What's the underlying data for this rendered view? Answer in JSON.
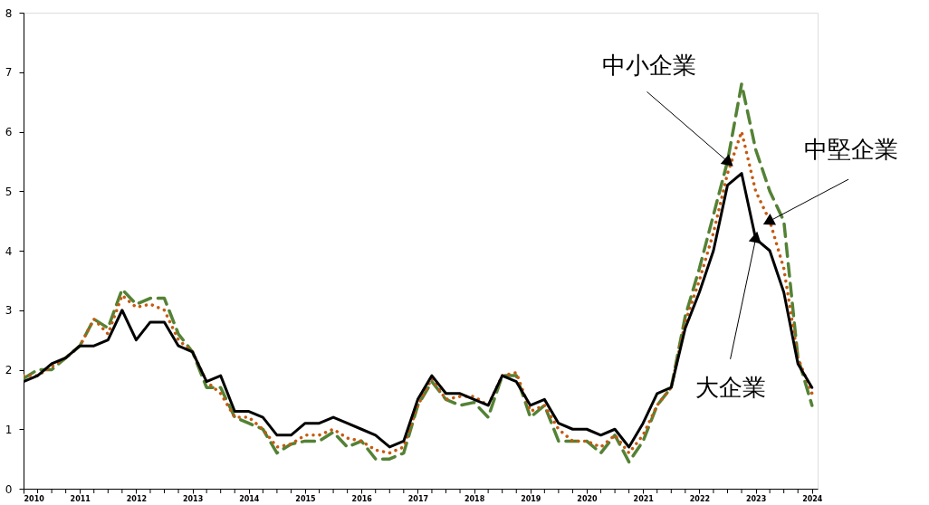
{
  "chart_data": {
    "type": "line",
    "x": [
      2010,
      2010.25,
      2010.5,
      2010.75,
      2011,
      2011.25,
      2011.5,
      2011.75,
      2012,
      2012.25,
      2012.5,
      2012.75,
      2013,
      2013.25,
      2013.5,
      2013.75,
      2014,
      2014.25,
      2014.5,
      2014.75,
      2015,
      2015.25,
      2015.5,
      2015.75,
      2016,
      2016.25,
      2016.5,
      2016.75,
      2017,
      2017.25,
      2017.5,
      2017.75,
      2018,
      2018.25,
      2018.5,
      2018.75,
      2019,
      2019.25,
      2019.5,
      2019.75,
      2020,
      2020.25,
      2020.5,
      2020.75,
      2021,
      2021.25,
      2021.5,
      2021.75,
      2022,
      2022.25,
      2022.5,
      2022.75,
      2023,
      2023.25,
      2023.5,
      2023.75,
      2024
    ],
    "series": [
      {
        "color": "#548235",
        "line_style": "dashed",
        "values": [
          1.85,
          2.0,
          2.0,
          2.2,
          2.4,
          2.85,
          2.7,
          3.35,
          3.1,
          3.2,
          3.2,
          2.6,
          2.3,
          1.7,
          1.7,
          1.2,
          1.1,
          1.0,
          0.6,
          0.75,
          0.8,
          0.8,
          0.95,
          0.7,
          0.8,
          0.5,
          0.5,
          0.6,
          1.4,
          1.8,
          1.5,
          1.4,
          1.45,
          1.2,
          1.9,
          1.9,
          1.2,
          1.4,
          0.8,
          0.8,
          0.8,
          0.6,
          0.9,
          0.45,
          0.8,
          1.4,
          1.7,
          2.9,
          3.7,
          4.6,
          5.5,
          6.8,
          5.7,
          5.0,
          4.5,
          2.2,
          1.4
        ]
      },
      {
        "color": "#c55a11",
        "line_style": "dotted",
        "values": [
          1.9,
          1.9,
          2.05,
          2.2,
          2.4,
          2.85,
          2.6,
          3.25,
          3.05,
          3.1,
          3.0,
          2.5,
          2.3,
          1.8,
          1.6,
          1.2,
          1.2,
          1.0,
          0.7,
          0.75,
          0.9,
          0.9,
          1.0,
          0.85,
          0.8,
          0.65,
          0.6,
          0.7,
          1.4,
          1.85,
          1.5,
          1.55,
          1.55,
          1.4,
          1.9,
          1.95,
          1.3,
          1.4,
          1.0,
          0.8,
          0.8,
          0.7,
          0.9,
          0.6,
          0.9,
          1.4,
          1.7,
          2.8,
          3.5,
          4.3,
          5.3,
          6.0,
          5.0,
          4.5,
          3.7,
          2.2,
          1.6
        ]
      },
      {
        "color": "#000000",
        "line_style": "solid",
        "values": [
          1.8,
          1.9,
          2.1,
          2.2,
          2.4,
          2.4,
          2.5,
          3.0,
          2.5,
          2.8,
          2.8,
          2.4,
          2.3,
          1.8,
          1.9,
          1.3,
          1.3,
          1.2,
          0.9,
          0.9,
          1.1,
          1.1,
          1.2,
          1.1,
          1.0,
          0.9,
          0.7,
          0.8,
          1.5,
          1.9,
          1.6,
          1.6,
          1.5,
          1.4,
          1.9,
          1.8,
          1.4,
          1.5,
          1.1,
          1.0,
          1.0,
          0.9,
          1.0,
          0.7,
          1.1,
          1.6,
          1.7,
          2.7,
          3.3,
          4.0,
          5.1,
          5.3,
          4.2,
          4.0,
          3.3,
          2.1,
          1.7
        ]
      }
    ],
    "xlim": [
      2010,
      2024.1
    ],
    "xticks": [
      2010,
      {
        "value": 2010.25,
        "label": null
      },
      {
        "value": 2010.5,
        "label": null
      },
      {
        "value": 2010.75,
        "label": null
      },
      2011,
      {
        "value": 2011.25,
        "label": null
      },
      {
        "value": 2011.5,
        "label": null
      },
      {
        "value": 2011.75,
        "label": null
      },
      2012,
      {
        "value": 2012.25,
        "label": null
      },
      {
        "value": 2012.5,
        "label": null
      },
      {
        "value": 2012.75,
        "label": null
      },
      2013,
      {
        "value": 2013.25,
        "label": null
      },
      {
        "value": 2013.5,
        "label": null
      },
      {
        "value": 2013.75,
        "label": null
      },
      2014,
      {
        "value": 2014.25,
        "label": null
      },
      {
        "value": 2014.5,
        "label": null
      },
      {
        "value": 2014.75,
        "label": null
      },
      2015,
      {
        "value": 2015.25,
        "label": null
      },
      {
        "value": 2015.5,
        "label": null
      },
      {
        "value": 2015.75,
        "label": null
      },
      2016,
      {
        "value": 2016.25,
        "label": null
      },
      {
        "value": 2016.5,
        "label": null
      },
      {
        "value": 2016.75,
        "label": null
      },
      2017,
      {
        "value": 2017.25,
        "label": null
      },
      {
        "value": 2017.5,
        "label": null
      },
      {
        "value": 2017.75,
        "label": null
      },
      2018,
      {
        "value": 2018.25,
        "label": null
      },
      {
        "value": 2018.5,
        "label": null
      },
      {
        "value": 2018.75,
        "label": null
      },
      2019,
      {
        "value": 2019.25,
        "label": null
      },
      {
        "value": 2019.5,
        "label": null
      },
      {
        "value": 2019.75,
        "label": null
      },
      2020,
      {
        "value": 2020.25,
        "label": null
      },
      {
        "value": 2020.5,
        "label": null
      },
      {
        "value": 2020.75,
        "label": null
      },
      2021,
      {
        "value": 2021.25,
        "label": null
      },
      {
        "value": 2021.5,
        "label": null
      },
      {
        "value": 2021.75,
        "label": null
      },
      2022,
      {
        "value": 2022.25,
        "label": null
      },
      {
        "value": 2022.5,
        "label": null
      },
      {
        "value": 2022.75,
        "label": null
      },
      2023,
      {
        "value": 2023.25,
        "label": null
      },
      {
        "value": 2023.5,
        "label": null
      },
      {
        "value": 2023.75,
        "label": null
      },
      2024
    ],
    "ylim": [
      0,
      8
    ],
    "yticks": [
      0,
      1,
      2,
      3,
      4,
      5,
      6,
      7,
      8
    ],
    "grid": false,
    "annotations": [
      {
        "text": "中小企業",
        "x": 2022.5,
        "y": 5.5
      },
      {
        "text": "中堅企業",
        "x": 2023.25,
        "y": 4.5
      },
      {
        "text": "大企業",
        "x": 2023,
        "y": 4.2
      }
    ]
  }
}
